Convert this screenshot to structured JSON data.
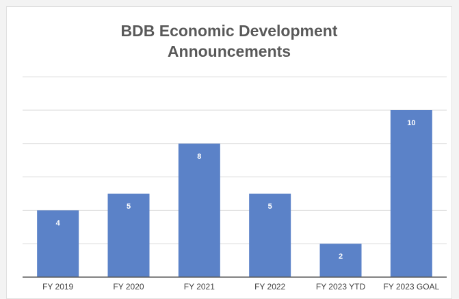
{
  "chart_data": {
    "type": "bar",
    "title": "BDB Economic Development Announcements",
    "title_lines": [
      "BDB Economic Development",
      "Announcements"
    ],
    "categories": [
      "FY 2019",
      "FY 2020",
      "FY 2021",
      "FY 2022",
      "FY 2023 YTD",
      "FY 2023 GOAL"
    ],
    "values": [
      4,
      5,
      8,
      5,
      2,
      10
    ],
    "data_labels": [
      "4",
      "5",
      "8",
      "5",
      "2",
      "10"
    ],
    "xlabel": "",
    "ylabel": "",
    "ylim": [
      0,
      12
    ],
    "y_axis_labels_visible": false,
    "grid": true,
    "legend": "none",
    "colors": {
      "bar": "#5b82c8",
      "gridline": "#d9d9d9",
      "axis": "#595959",
      "title": "#595959"
    }
  }
}
